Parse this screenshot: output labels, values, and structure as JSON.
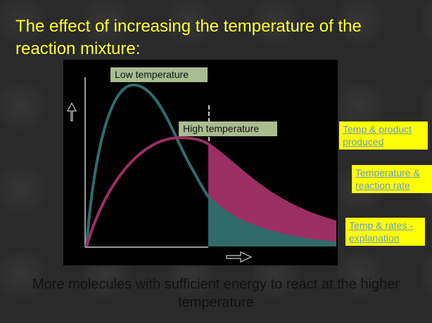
{
  "slide": {
    "title": "The effect of increasing the temperature of the reaction mixture:",
    "caption": "More molecules with sufficient energy to react at the higher temperature"
  },
  "diagram": {
    "labels": {
      "low": "Low temperature",
      "high": "High temperature"
    },
    "colors": {
      "low": "#2f6b6b",
      "high": "#9b2f64",
      "label_bg": "#a9bd8f"
    }
  },
  "links": [
    {
      "label": "Temp & product produced"
    },
    {
      "label": "Temperature & reaction rate"
    },
    {
      "label": "Temp & rates - explanation"
    }
  ]
}
